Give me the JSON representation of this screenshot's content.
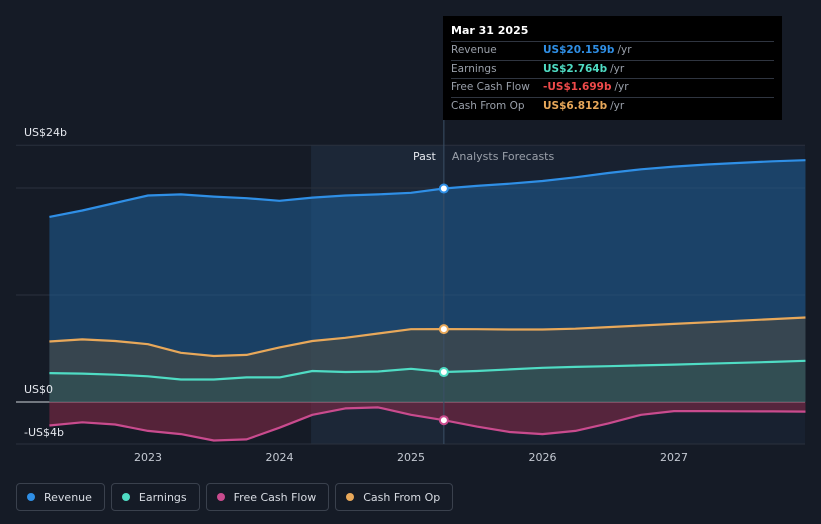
{
  "chart_data": {
    "type": "line",
    "title": "",
    "x_unit": "year",
    "xlim": [
      2022.25,
      2028.0
    ],
    "ylim": [
      -4,
      24
    ],
    "y_tick_labels": [
      {
        "value": 24,
        "label": "US$24b"
      },
      {
        "value": 0,
        "label": "US$0"
      },
      {
        "value": -4,
        "label": "-US$4b"
      }
    ],
    "x_ticks": [
      {
        "value": 2023,
        "label": "2023"
      },
      {
        "value": 2024,
        "label": "2024"
      },
      {
        "value": 2025,
        "label": "2025"
      },
      {
        "value": 2026,
        "label": "2026"
      },
      {
        "value": 2027,
        "label": "2027"
      }
    ],
    "divider_x": 2025.25,
    "highlight_x_start": 2024.24,
    "past_label": "Past",
    "forecast_label": "Analysts Forecasts",
    "series": [
      {
        "name": "Revenue",
        "key": "revenue",
        "color": "#2f8fe6",
        "value_text": "US$20.159b",
        "x": [
          2022.25,
          2022.5,
          2022.75,
          2023.0,
          2023.25,
          2023.5,
          2023.75,
          2024.0,
          2024.25,
          2024.5,
          2024.75,
          2025.0,
          2025.25,
          2025.5,
          2025.75,
          2026.0,
          2026.25,
          2026.5,
          2026.75,
          2027.0,
          2027.25,
          2027.5,
          2027.75,
          2028.0
        ],
        "y": [
          17.3,
          17.9,
          18.6,
          19.3,
          19.4,
          19.2,
          19.05,
          18.8,
          19.1,
          19.3,
          19.4,
          19.55,
          19.95,
          20.2,
          20.4,
          20.65,
          21.0,
          21.4,
          21.75,
          22.0,
          22.2,
          22.35,
          22.5,
          22.6
        ]
      },
      {
        "name": "Earnings",
        "key": "earnings",
        "color": "#4fdcc4",
        "value_text": "US$2.764b",
        "x": [
          2022.25,
          2022.5,
          2022.75,
          2023.0,
          2023.25,
          2023.5,
          2023.75,
          2024.0,
          2024.25,
          2024.5,
          2024.75,
          2025.0,
          2025.25,
          2025.5,
          2025.75,
          2026.0,
          2026.25,
          2026.5,
          2026.75,
          2027.0,
          2027.25,
          2027.5,
          2027.75,
          2028.0
        ],
        "y": [
          2.7,
          2.65,
          2.55,
          2.4,
          2.1,
          2.1,
          2.3,
          2.3,
          2.9,
          2.8,
          2.85,
          3.1,
          2.8,
          2.9,
          3.05,
          3.2,
          3.28,
          3.35,
          3.42,
          3.5,
          3.58,
          3.66,
          3.75,
          3.85
        ]
      },
      {
        "name": "Free Cash Flow",
        "key": "fcf",
        "color": "#c94b8e",
        "value_text": "-US$1.699b",
        "x": [
          2022.25,
          2022.5,
          2022.75,
          2023.0,
          2023.25,
          2023.5,
          2023.75,
          2024.0,
          2024.25,
          2024.5,
          2024.75,
          2025.0,
          2025.25,
          2025.5,
          2025.75,
          2026.0,
          2026.25,
          2026.5,
          2026.75,
          2027.0,
          2027.25,
          2027.5,
          2027.75,
          2028.0
        ],
        "y": [
          -2.2,
          -1.9,
          -2.1,
          -2.7,
          -3.0,
          -3.6,
          -3.5,
          -2.4,
          -1.2,
          -0.6,
          -0.5,
          -1.2,
          -1.7,
          -2.3,
          -2.8,
          -3.0,
          -2.7,
          -2.0,
          -1.2,
          -0.85,
          -0.85,
          -0.87,
          -0.88,
          -0.9
        ]
      },
      {
        "name": "Cash From Op",
        "key": "cfo",
        "color": "#e8a85a",
        "value_text": "US$6.812b",
        "x": [
          2022.25,
          2022.5,
          2022.75,
          2023.0,
          2023.25,
          2023.5,
          2023.75,
          2024.0,
          2024.25,
          2024.5,
          2024.75,
          2025.0,
          2025.25,
          2025.5,
          2025.75,
          2026.0,
          2026.25,
          2026.5,
          2026.75,
          2027.0,
          2027.25,
          2027.5,
          2027.75,
          2028.0
        ],
        "y": [
          5.65,
          5.85,
          5.7,
          5.4,
          4.6,
          4.3,
          4.4,
          5.1,
          5.7,
          6.0,
          6.4,
          6.8,
          6.812,
          6.8,
          6.78,
          6.78,
          6.85,
          7.0,
          7.15,
          7.3,
          7.45,
          7.6,
          7.75,
          7.9
        ]
      }
    ]
  },
  "tooltip": {
    "date": "Mar 31 2025",
    "unit": "/yr",
    "rows": [
      {
        "label": "Revenue",
        "value": "US$20.159b",
        "color": "#2f8fe6"
      },
      {
        "label": "Earnings",
        "value": "US$2.764b",
        "color": "#4fdcc4"
      },
      {
        "label": "Free Cash Flow",
        "value": "-US$1.699b",
        "color": "#ef4a4a"
      },
      {
        "label": "Cash From Op",
        "value": "US$6.812b",
        "color": "#e8a85a"
      }
    ]
  },
  "legend": [
    {
      "label": "Revenue",
      "color": "#2f8fe6"
    },
    {
      "label": "Earnings",
      "color": "#4fdcc4"
    },
    {
      "label": "Free Cash Flow",
      "color": "#c94b8e"
    },
    {
      "label": "Cash From Op",
      "color": "#e8a85a"
    }
  ]
}
